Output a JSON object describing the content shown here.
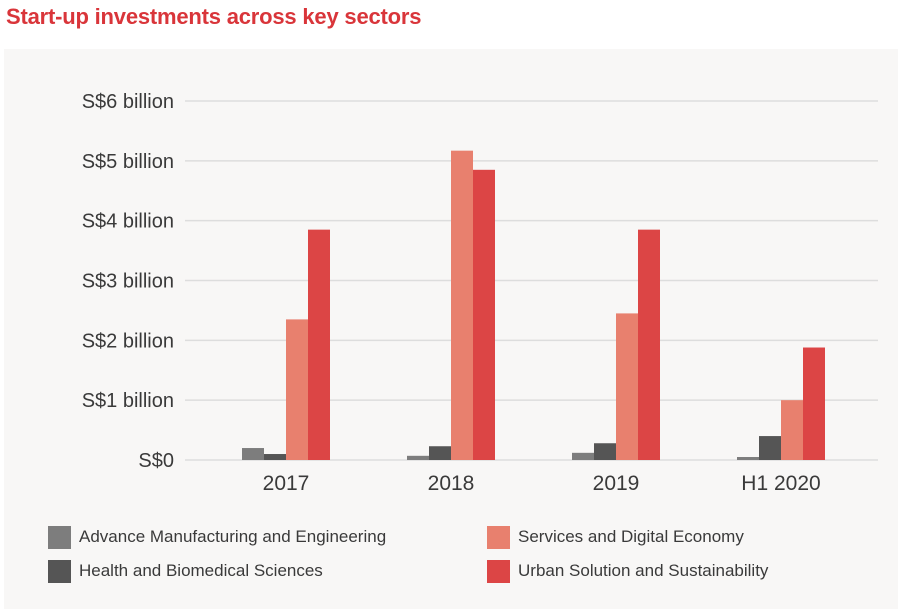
{
  "chart_data": {
    "type": "bar",
    "title": "Start-up investments across key sectors",
    "xlabel": "",
    "ylabel": "",
    "categories": [
      "2017",
      "2018",
      "2019",
      "H1 2020"
    ],
    "ylim": [
      0,
      6
    ],
    "yunit": "S$ billion",
    "yticks": [
      {
        "value": 0,
        "label": "S$0"
      },
      {
        "value": 1,
        "label": "S$1 billion"
      },
      {
        "value": 2,
        "label": "S$2 billion"
      },
      {
        "value": 3,
        "label": "S$3 billion"
      },
      {
        "value": 4,
        "label": "S$4 billion"
      },
      {
        "value": 5,
        "label": "S$5 billion"
      },
      {
        "value": 6,
        "label": "S$6 billion"
      }
    ],
    "grid": true,
    "legend_position": "bottom",
    "series": [
      {
        "name": "Advance Manufacturing and Engineering",
        "color": "#7D7D7D",
        "values": [
          0.2,
          0.07,
          0.12,
          0.05
        ]
      },
      {
        "name": "Health and Biomedical Sciences",
        "color": "#555555",
        "values": [
          0.1,
          0.23,
          0.28,
          0.4
        ]
      },
      {
        "name": "Services and Digital Economy",
        "color": "#E8806E",
        "values": [
          2.35,
          5.17,
          2.45,
          1.0
        ]
      },
      {
        "name": "Urban Solution and Sustainability",
        "color": "#DC4545",
        "values": [
          3.85,
          4.85,
          3.85,
          1.88
        ]
      }
    ]
  },
  "colors": {
    "title": "#D9353A",
    "panel_background": "#F8F7F6",
    "gridline": "#DDDDDD",
    "text": "#3A3A3A"
  }
}
